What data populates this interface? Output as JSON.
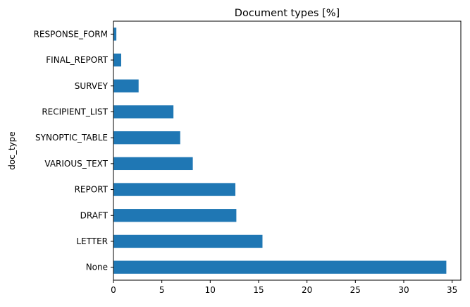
{
  "chart_data": {
    "type": "bar",
    "orientation": "horizontal",
    "title": "Document types [%]",
    "xlabel": "",
    "ylabel": "doc_type",
    "categories": [
      "None",
      "LETTER",
      "DRAFT",
      "REPORT",
      "VARIOUS_TEXT",
      "SYNOPTIC_TABLE",
      "RECIPIENT_LIST",
      "SURVEY",
      "FINAL_REPORT",
      "RESPONSE_FORM"
    ],
    "values": [
      34.4,
      15.4,
      12.7,
      12.6,
      8.2,
      6.9,
      6.2,
      2.6,
      0.8,
      0.3
    ],
    "xlim": [
      0,
      35.9
    ],
    "xticks": [
      0,
      5,
      10,
      15,
      20,
      25,
      30,
      35
    ],
    "bar_color": "#1f77b4",
    "grid": false,
    "legend": "none"
  }
}
